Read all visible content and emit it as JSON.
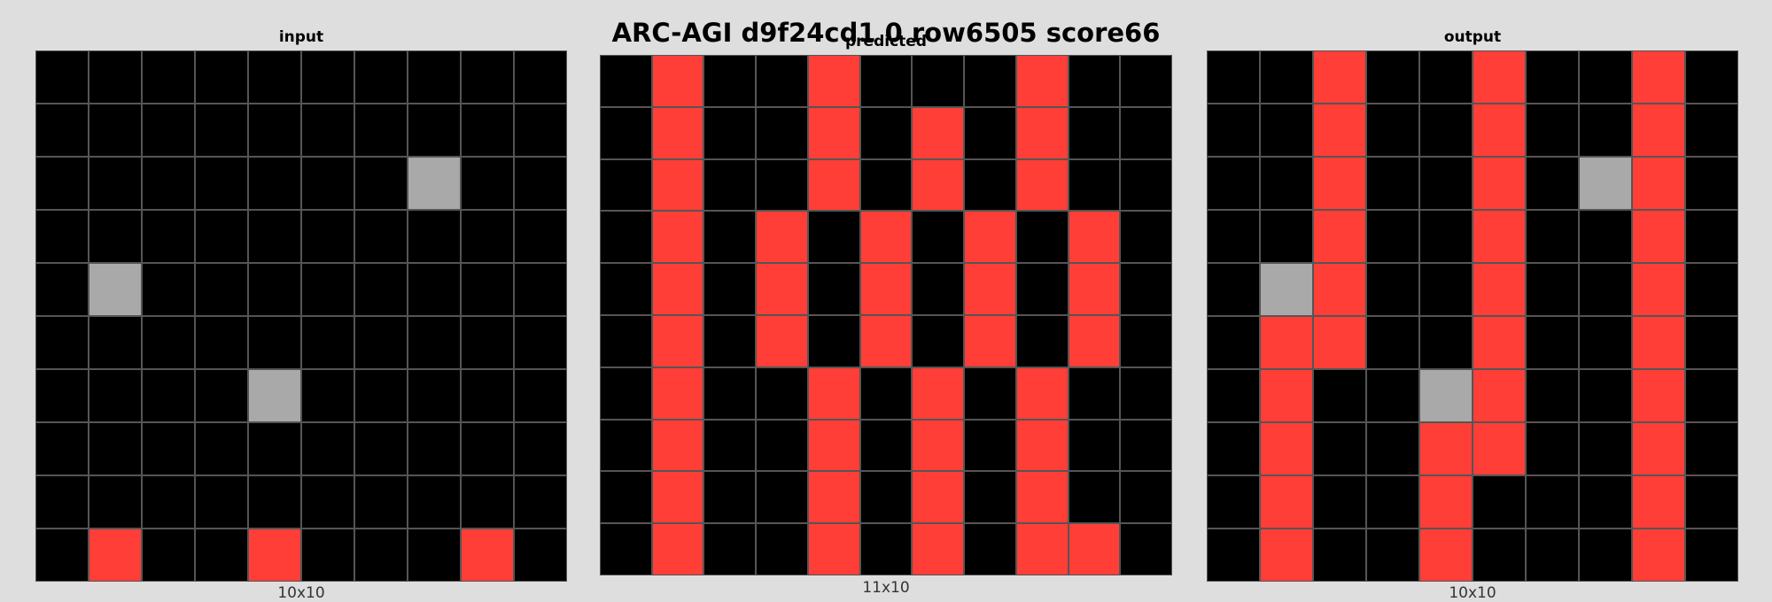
{
  "title": "ARC-AGI d9f24cd1 0 row6505 score66",
  "palette": {
    "0": "#000000",
    "2": "#ff3e37",
    "5": "#a9a9a9"
  },
  "panels": [
    {
      "label": "input",
      "dims": "10x10",
      "grid": [
        [
          0,
          0,
          0,
          0,
          0,
          0,
          0,
          0,
          0,
          0
        ],
        [
          0,
          0,
          0,
          0,
          0,
          0,
          0,
          0,
          0,
          0
        ],
        [
          0,
          0,
          0,
          0,
          0,
          0,
          0,
          5,
          0,
          0
        ],
        [
          0,
          0,
          0,
          0,
          0,
          0,
          0,
          0,
          0,
          0
        ],
        [
          0,
          5,
          0,
          0,
          0,
          0,
          0,
          0,
          0,
          0
        ],
        [
          0,
          0,
          0,
          0,
          0,
          0,
          0,
          0,
          0,
          0
        ],
        [
          0,
          0,
          0,
          0,
          5,
          0,
          0,
          0,
          0,
          0
        ],
        [
          0,
          0,
          0,
          0,
          0,
          0,
          0,
          0,
          0,
          0
        ],
        [
          0,
          0,
          0,
          0,
          0,
          0,
          0,
          0,
          0,
          0
        ],
        [
          0,
          2,
          0,
          0,
          2,
          0,
          0,
          0,
          2,
          0
        ]
      ]
    },
    {
      "label": "predicted",
      "dims": "11x10",
      "grid": [
        [
          0,
          2,
          0,
          0,
          2,
          0,
          0,
          0,
          2,
          0,
          0
        ],
        [
          0,
          2,
          0,
          0,
          2,
          0,
          2,
          0,
          2,
          0,
          0
        ],
        [
          0,
          2,
          0,
          0,
          2,
          0,
          2,
          0,
          2,
          0,
          0
        ],
        [
          0,
          2,
          0,
          2,
          0,
          2,
          0,
          2,
          0,
          2,
          0
        ],
        [
          0,
          2,
          0,
          2,
          0,
          2,
          0,
          2,
          0,
          2,
          0
        ],
        [
          0,
          2,
          0,
          2,
          0,
          2,
          0,
          2,
          0,
          2,
          0
        ],
        [
          0,
          2,
          0,
          0,
          2,
          0,
          2,
          0,
          2,
          0,
          0
        ],
        [
          0,
          2,
          0,
          0,
          2,
          0,
          2,
          0,
          2,
          0,
          0
        ],
        [
          0,
          2,
          0,
          0,
          2,
          0,
          2,
          0,
          2,
          0,
          0
        ],
        [
          0,
          2,
          0,
          0,
          2,
          0,
          2,
          0,
          2,
          2,
          0
        ]
      ]
    },
    {
      "label": "output",
      "dims": "10x10",
      "grid": [
        [
          0,
          0,
          2,
          0,
          0,
          2,
          0,
          0,
          2,
          0
        ],
        [
          0,
          0,
          2,
          0,
          0,
          2,
          0,
          0,
          2,
          0
        ],
        [
          0,
          0,
          2,
          0,
          0,
          2,
          0,
          5,
          2,
          0
        ],
        [
          0,
          0,
          2,
          0,
          0,
          2,
          0,
          0,
          2,
          0
        ],
        [
          0,
          5,
          2,
          0,
          0,
          2,
          0,
          0,
          2,
          0
        ],
        [
          0,
          2,
          2,
          0,
          0,
          2,
          0,
          0,
          2,
          0
        ],
        [
          0,
          2,
          0,
          0,
          5,
          2,
          0,
          0,
          2,
          0
        ],
        [
          0,
          2,
          0,
          0,
          2,
          2,
          0,
          0,
          2,
          0
        ],
        [
          0,
          2,
          0,
          0,
          2,
          0,
          0,
          0,
          2,
          0
        ],
        [
          0,
          2,
          0,
          0,
          2,
          0,
          0,
          0,
          2,
          0
        ]
      ]
    }
  ]
}
